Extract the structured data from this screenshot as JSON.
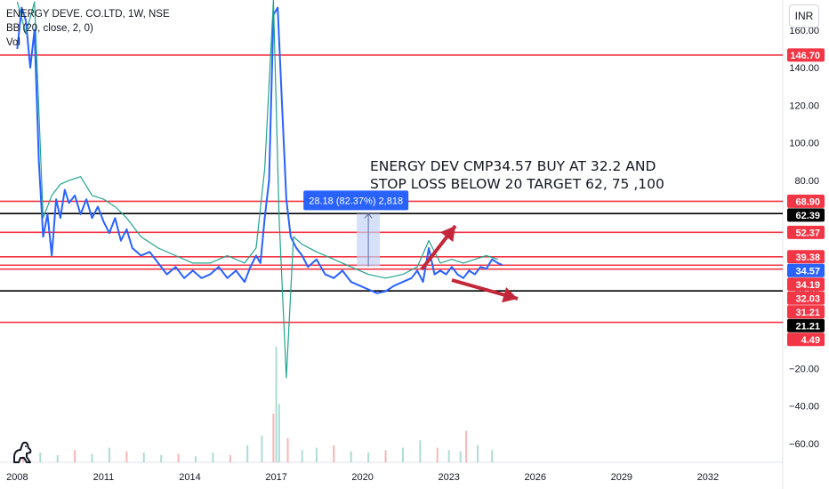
{
  "legend": {
    "symbol": "ENERGY DEVE. CO.LTD, 1W, NSE",
    "bb": "BB (20, close, 2, 0)",
    "vol": "Vol"
  },
  "currency_button": "INR",
  "colors": {
    "price_line": "#2962ff",
    "bb_line": "#22a38f",
    "red_level": "#f23645",
    "black_level": "#000000",
    "arrow": "#c2283a",
    "measure_fill": "#c5d3f5",
    "measure_badge": "#2962ff",
    "current_price_badge": "#2962ff"
  },
  "annotation": {
    "line1": "ENERGY DEV CMP34.57 BUY AT 32.2 AND",
    "line2": "STOP LOSS BELOW 20 TARGET 62, 75 ,100"
  },
  "measure": {
    "label": "28.18 (82.37%) 2,818"
  },
  "chart_data": {
    "type": "line",
    "x_axis_ticks": [
      "2008",
      "2011",
      "2014",
      "2017",
      "2020",
      "2023",
      "2026",
      "2029",
      "2032"
    ],
    "y_axis_ticks": [
      "160.00",
      "140.00",
      "120.00",
      "100.00",
      "80.00",
      "60.00",
      "40.00",
      "20.00",
      "−20.00",
      "−40.00",
      "−60.00"
    ],
    "y_tick_values": [
      160,
      140,
      120,
      100,
      80,
      60,
      40,
      20,
      -20,
      -40,
      -60
    ],
    "x_tick_years": [
      2008,
      2011,
      2014,
      2017,
      2020,
      2023,
      2026,
      2029,
      2032
    ],
    "xlim": [
      2007.4,
      2034.6
    ],
    "ylim": [
      -70,
      176
    ],
    "price_badges": [
      {
        "label": "146.70",
        "value": 146.7,
        "color": "#f23645",
        "text_color": "#ffffff"
      },
      {
        "label": "68.90",
        "value": 68.9,
        "color": "#f23645",
        "text_color": "#ffffff"
      },
      {
        "label": "62.39",
        "value": 62.39,
        "color": "#000000",
        "text_color": "#ffffff"
      },
      {
        "label": "52.37",
        "value": 52.37,
        "color": "#f23645",
        "text_color": "#ffffff"
      },
      {
        "label": "39.38",
        "value": 39.38,
        "color": "#f23645",
        "text_color": "#ffffff"
      },
      {
        "label": "34.57",
        "value": 34.57,
        "color": "#2962ff",
        "text_color": "#ffffff"
      },
      {
        "label": "34.19",
        "value": 34.19,
        "color": "#f23645",
        "text_color": "#ffffff"
      },
      {
        "label": "32.03",
        "value": 32.03,
        "color": "#f23645",
        "text_color": "#ffffff"
      },
      {
        "label": "31.21",
        "value": 31.21,
        "color": "#f23645",
        "text_color": "#ffffff"
      },
      {
        "label": "21.21",
        "value": 21.21,
        "color": "#000000",
        "text_color": "#ffffff"
      },
      {
        "label": "4.49",
        "value": 4.49,
        "color": "#f23645",
        "text_color": "#ffffff"
      }
    ],
    "horizontal_levels": [
      {
        "value": 146.7,
        "color": "#f23645"
      },
      {
        "value": 68.9,
        "color": "#f23645"
      },
      {
        "value": 62.39,
        "color": "#000000"
      },
      {
        "value": 52.37,
        "color": "#f23645"
      },
      {
        "value": 39.38,
        "color": "#f23645"
      },
      {
        "value": 34.9,
        "color": "#f23645"
      },
      {
        "value": 32.8,
        "color": "#f23645"
      },
      {
        "value": 21.21,
        "color": "#000000"
      },
      {
        "value": 4.49,
        "color": "#f23645"
      }
    ],
    "series": [
      {
        "name": "Price",
        "x": [
          2008.0,
          2008.15,
          2008.3,
          2008.45,
          2008.6,
          2008.75,
          2008.9,
          2009.05,
          2009.2,
          2009.35,
          2009.5,
          2009.65,
          2009.8,
          2010.0,
          2010.2,
          2010.4,
          2010.6,
          2010.8,
          2011.0,
          2011.2,
          2011.4,
          2011.6,
          2011.8,
          2012.0,
          2012.3,
          2012.6,
          2012.9,
          2013.2,
          2013.5,
          2013.8,
          2014.1,
          2014.4,
          2014.7,
          2015.0,
          2015.3,
          2015.6,
          2015.9,
          2016.1,
          2016.3,
          2016.45,
          2016.6,
          2016.75,
          2016.9,
          2017.05,
          2017.2,
          2017.35,
          2017.5,
          2017.7,
          2017.9,
          2018.1,
          2018.4,
          2018.7,
          2019.0,
          2019.3,
          2019.6,
          2019.9,
          2020.2,
          2020.5,
          2020.8,
          2021.1,
          2021.4,
          2021.7,
          2021.9,
          2022.1,
          2022.3,
          2022.5,
          2022.7,
          2022.9,
          2023.1,
          2023.3,
          2023.5,
          2023.7,
          2023.9,
          2024.1,
          2024.3,
          2024.5,
          2024.7,
          2024.85
        ],
        "values": [
          150,
          172,
          165,
          140,
          160,
          90,
          50,
          62,
          40,
          70,
          60,
          75,
          68,
          72,
          62,
          70,
          60,
          66,
          58,
          52,
          60,
          48,
          54,
          44,
          40,
          42,
          36,
          30,
          34,
          28,
          32,
          28,
          30,
          34,
          28,
          32,
          26,
          34,
          40,
          36,
          60,
          80,
          168,
          172,
          120,
          70,
          50,
          44,
          40,
          34,
          38,
          30,
          28,
          32,
          26,
          24,
          22,
          20,
          21,
          24,
          26,
          28,
          32,
          26,
          44,
          30,
          32,
          30,
          34,
          30,
          28,
          32,
          30,
          34,
          33,
          38,
          36,
          35
        ]
      },
      {
        "name": "BB",
        "x": [
          2008.0,
          2008.3,
          2008.6,
          2008.9,
          2009.2,
          2009.5,
          2009.8,
          2010.2,
          2010.6,
          2011.0,
          2011.4,
          2011.8,
          2012.3,
          2012.9,
          2013.5,
          2014.1,
          2014.7,
          2015.3,
          2015.9,
          2016.3,
          2016.6,
          2016.9,
          2017.1,
          2017.35,
          2017.6,
          2017.9,
          2018.4,
          2019.0,
          2019.6,
          2020.2,
          2020.8,
          2021.4,
          2021.9,
          2022.3,
          2022.7,
          2023.1,
          2023.5,
          2023.9,
          2024.3,
          2024.7
        ],
        "values": [
          175,
          158,
          175,
          60,
          72,
          78,
          80,
          82,
          72,
          70,
          66,
          60,
          50,
          44,
          40,
          36,
          36,
          40,
          36,
          44,
          86,
          176,
          60,
          -25,
          50,
          46,
          42,
          38,
          34,
          30,
          28,
          30,
          34,
          48,
          36,
          38,
          36,
          38,
          40,
          38
        ]
      }
    ],
    "volume": {
      "x": [
        2008.2,
        2008.8,
        2009.4,
        2010.0,
        2010.6,
        2011.2,
        2011.8,
        2012.4,
        2013.0,
        2013.6,
        2014.2,
        2014.8,
        2015.4,
        2016.0,
        2016.5,
        2016.9,
        2017.0,
        2017.1,
        2017.4,
        2017.9,
        2018.4,
        2019.0,
        2019.6,
        2020.2,
        2020.8,
        2021.4,
        2022.0,
        2022.6,
        2023.0,
        2023.4,
        2023.6,
        2024.0,
        2024.5
      ],
      "values": [
        5,
        8,
        6,
        10,
        7,
        12,
        9,
        8,
        6,
        7,
        5,
        8,
        6,
        14,
        22,
        40,
        95,
        48,
        20,
        10,
        12,
        14,
        9,
        8,
        10,
        12,
        18,
        12,
        10,
        9,
        26,
        14,
        10
      ]
    }
  }
}
